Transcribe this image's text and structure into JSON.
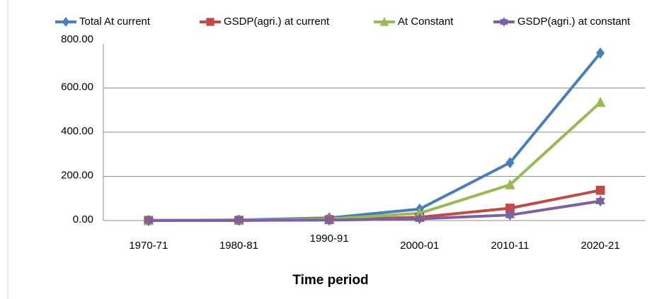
{
  "chart_data": {
    "type": "line",
    "title": "",
    "xlabel": "Time period",
    "ylabel": "",
    "categories": [
      "1970-71",
      "1980-81",
      "1990-91",
      "2000-01",
      "2010-11",
      "2020-21"
    ],
    "y_ticks": [
      "0.00",
      "200.00",
      "400.00",
      "600.00",
      "800.00"
    ],
    "ylim": [
      0,
      800
    ],
    "grid": "horizontal",
    "legend_position": "top",
    "series": [
      {
        "name": "Total At current",
        "color": "#4a7ebb",
        "marker": "diamond",
        "values": [
          0.5,
          3,
          12,
          52,
          262,
          758
        ]
      },
      {
        "name": "GSDP(agri.) at current",
        "color": "#be4b48",
        "marker": "square",
        "values": [
          0.2,
          1,
          4,
          15,
          56,
          137
        ]
      },
      {
        "name": "At Constant",
        "color": "#98b954",
        "marker": "triangle",
        "values": [
          0.4,
          2,
          7,
          33,
          162,
          535
        ]
      },
      {
        "name": "GSDP(agri.) at constant",
        "color": "#7d60a0",
        "marker": "star",
        "values": [
          0.1,
          0.5,
          2,
          8,
          25,
          88
        ]
      }
    ]
  }
}
